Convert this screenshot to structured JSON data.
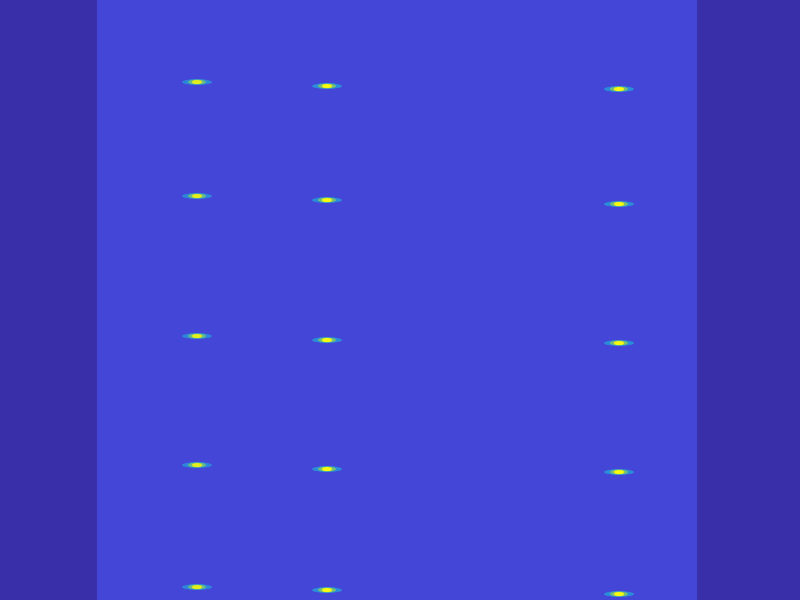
{
  "chart_data": {
    "type": "heatmap",
    "xlim": [
      0,
      800
    ],
    "ylim": [
      0,
      600
    ],
    "xticks": [
      80,
      188,
      296,
      404,
      512,
      620,
      728
    ],
    "yticks": [
      62,
      122,
      182,
      242,
      302,
      362,
      422,
      482,
      542
    ],
    "tick_labels": false,
    "zlim": [
      0,
      1
    ],
    "cells": {
      "x_edges": [
        0,
        97,
        697,
        800
      ],
      "values": [
        0.05,
        0.2,
        0.05
      ]
    },
    "x": [
      197,
      197,
      197,
      197,
      197,
      327,
      327,
      327,
      327,
      327,
      619,
      619,
      619,
      619,
      619
    ],
    "y": [
      518,
      404,
      264,
      135,
      13,
      514,
      400,
      260,
      131,
      10,
      511,
      396,
      257,
      128,
      6
    ],
    "values": [
      0.95,
      0.95,
      0.95,
      0.95,
      0.95,
      1,
      1,
      1,
      1,
      1,
      1,
      1,
      1,
      1,
      1
    ]
  }
}
